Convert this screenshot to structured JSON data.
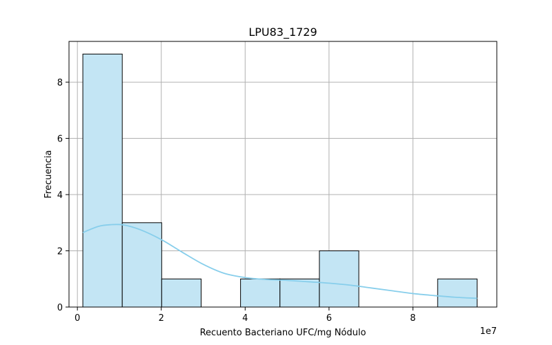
{
  "chart_data": {
    "type": "bar",
    "title": "LPU83_1729",
    "xlabel": "Recuento Bacteriano UFC/mg Nódulo",
    "ylabel": "Frecuencia",
    "x_offset_label": "1e7",
    "x_scale": 10000000,
    "xlim": [
      -2000000,
      100000000
    ],
    "ylim": [
      0,
      9.45
    ],
    "x_ticks": [
      0,
      20000000,
      40000000,
      60000000,
      80000000
    ],
    "x_tick_labels": [
      "0",
      "2",
      "4",
      "6",
      "8"
    ],
    "y_ticks": [
      0,
      2,
      4,
      6,
      8
    ],
    "y_tick_labels": [
      "0",
      "2",
      "4",
      "6",
      "8"
    ],
    "grid": true,
    "bar_color": "#c3e5f4",
    "bar_edge_color": "#000000",
    "bins": [
      {
        "x0": 1300000,
        "x1": 10700000,
        "count": 9
      },
      {
        "x0": 10700000,
        "x1": 20100000,
        "count": 3
      },
      {
        "x0": 20100000,
        "x1": 29500000,
        "count": 1
      },
      {
        "x0": 29500000,
        "x1": 38900000,
        "count": 0
      },
      {
        "x0": 38900000,
        "x1": 48300000,
        "count": 1
      },
      {
        "x0": 48300000,
        "x1": 57700000,
        "count": 1
      },
      {
        "x0": 57700000,
        "x1": 67100000,
        "count": 2
      },
      {
        "x0": 67100000,
        "x1": 76500000,
        "count": 0
      },
      {
        "x0": 76500000,
        "x1": 85900000,
        "count": 0
      },
      {
        "x0": 85900000,
        "x1": 95300000,
        "count": 1
      }
    ],
    "kde_color": "#87ceeb",
    "kde": {
      "x": [
        1300000,
        5000000,
        8000000,
        11000000,
        15000000,
        20000000,
        25000000,
        30000000,
        35000000,
        40000000,
        45000000,
        50000000,
        55000000,
        60000000,
        65000000,
        70000000,
        75000000,
        80000000,
        85000000,
        90000000,
        95300000
      ],
      "y": [
        2.65,
        2.87,
        2.93,
        2.92,
        2.75,
        2.4,
        1.95,
        1.52,
        1.2,
        1.05,
        0.98,
        0.95,
        0.9,
        0.85,
        0.78,
        0.68,
        0.58,
        0.48,
        0.41,
        0.35,
        0.31
      ]
    }
  }
}
